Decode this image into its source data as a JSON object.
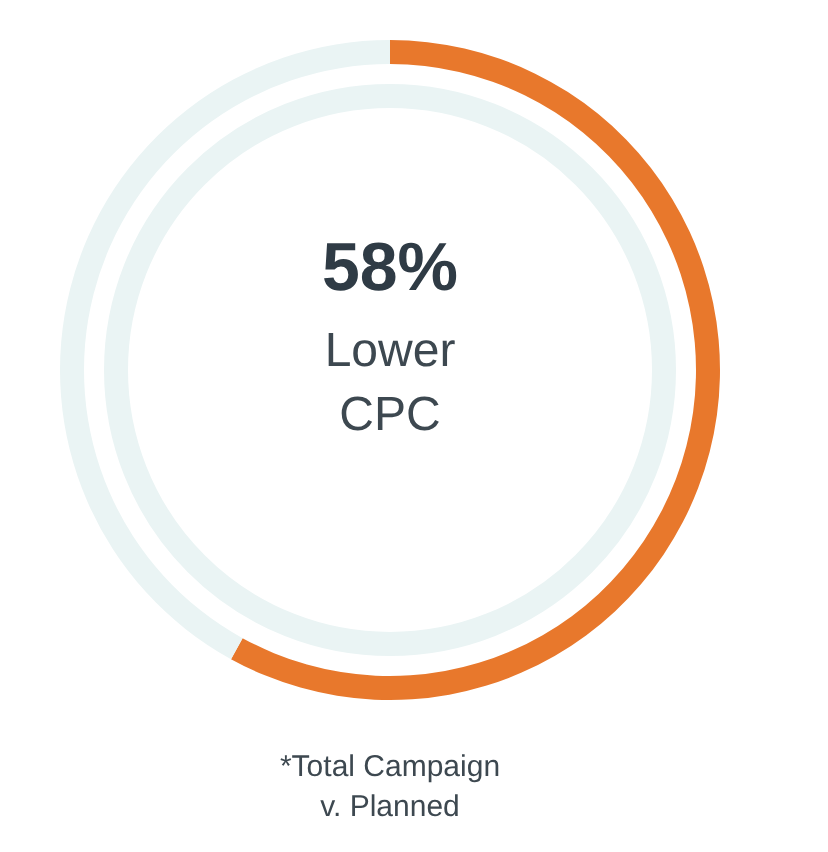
{
  "chart_data": {
    "type": "donut",
    "title": "58%",
    "subtitle": "Lower CPC",
    "categories": [
      null,
      null
    ],
    "values": [
      58,
      42
    ],
    "colors": [
      "#e8782c",
      "#eaf4f4"
    ],
    "annotations": [
      "*Total Campaign v. Planned"
    ]
  }
}
